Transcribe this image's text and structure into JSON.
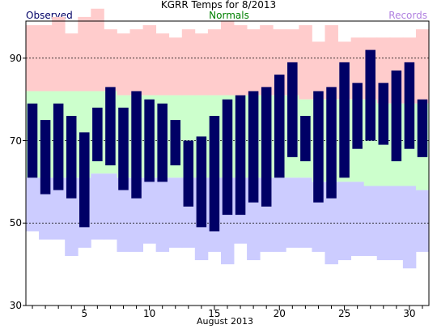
{
  "chart_data": {
    "type": "bar",
    "title": "KGRR Temps for 8/2013",
    "xlabel": "August 2013",
    "ylabel": "",
    "legend": {
      "observed": "Observed",
      "normals": "Normals",
      "records": "Records"
    },
    "colors": {
      "observed": "#000066",
      "normals_label": "#008000",
      "records_label": "#b080e0",
      "record_band": "#ffcccc",
      "normal_band": "#ccffcc",
      "low_band": "#ccccff",
      "frame": "#000000",
      "grid": "#000000"
    },
    "grid": true,
    "grid_values": [
      50,
      70,
      90
    ],
    "ylim": [
      30,
      99
    ],
    "xlim": [
      0.5,
      31.5
    ],
    "y_ticks": [
      30,
      50,
      70,
      90
    ],
    "x_ticks": [
      5,
      10,
      15,
      20,
      25,
      30
    ],
    "y_tick_labels": [
      "30",
      "50",
      "70",
      "90"
    ],
    "x_tick_labels": [
      "5",
      "10",
      "15",
      "20",
      "25",
      "30"
    ],
    "days": [
      1,
      2,
      3,
      4,
      5,
      6,
      7,
      8,
      9,
      10,
      11,
      12,
      13,
      14,
      15,
      16,
      17,
      18,
      19,
      20,
      21,
      22,
      23,
      24,
      25,
      26,
      27,
      28,
      29,
      30,
      31
    ],
    "observed_high": [
      79,
      75,
      79,
      76,
      72,
      78,
      83,
      78,
      82,
      80,
      79,
      75,
      70,
      71,
      76,
      80,
      81,
      82,
      83,
      86,
      89,
      76,
      82,
      83,
      89,
      84,
      92,
      84,
      87,
      89,
      80
    ],
    "observed_low": [
      61,
      57,
      58,
      56,
      49,
      65,
      64,
      58,
      56,
      60,
      60,
      64,
      54,
      49,
      48,
      52,
      52,
      55,
      54,
      61,
      66,
      65,
      55,
      56,
      61,
      68,
      70,
      69,
      65,
      68,
      66
    ],
    "normal_high": [
      82,
      82,
      82,
      82,
      82,
      82,
      82,
      81,
      81,
      81,
      81,
      81,
      81,
      81,
      81,
      81,
      81,
      81,
      81,
      81,
      81,
      80,
      80,
      80,
      80,
      80,
      80,
      79,
      79,
      79,
      79
    ],
    "normal_low": [
      61,
      61,
      61,
      61,
      61,
      62,
      62,
      61,
      61,
      61,
      61,
      61,
      61,
      61,
      61,
      61,
      61,
      61,
      61,
      61,
      61,
      61,
      60,
      60,
      60,
      60,
      59,
      59,
      59,
      59,
      58
    ],
    "record_high": [
      98,
      98,
      100,
      96,
      100,
      102,
      97,
      96,
      97,
      98,
      96,
      95,
      97,
      96,
      97,
      99,
      98,
      97,
      98,
      97,
      97,
      98,
      94,
      98,
      94,
      95,
      95,
      95,
      95,
      95,
      97
    ],
    "record_low": [
      48,
      46,
      46,
      42,
      44,
      46,
      46,
      43,
      43,
      45,
      43,
      44,
      44,
      41,
      43,
      40,
      45,
      41,
      43,
      43,
      44,
      44,
      43,
      40,
      41,
      42,
      42,
      41,
      41,
      39,
      43
    ]
  }
}
